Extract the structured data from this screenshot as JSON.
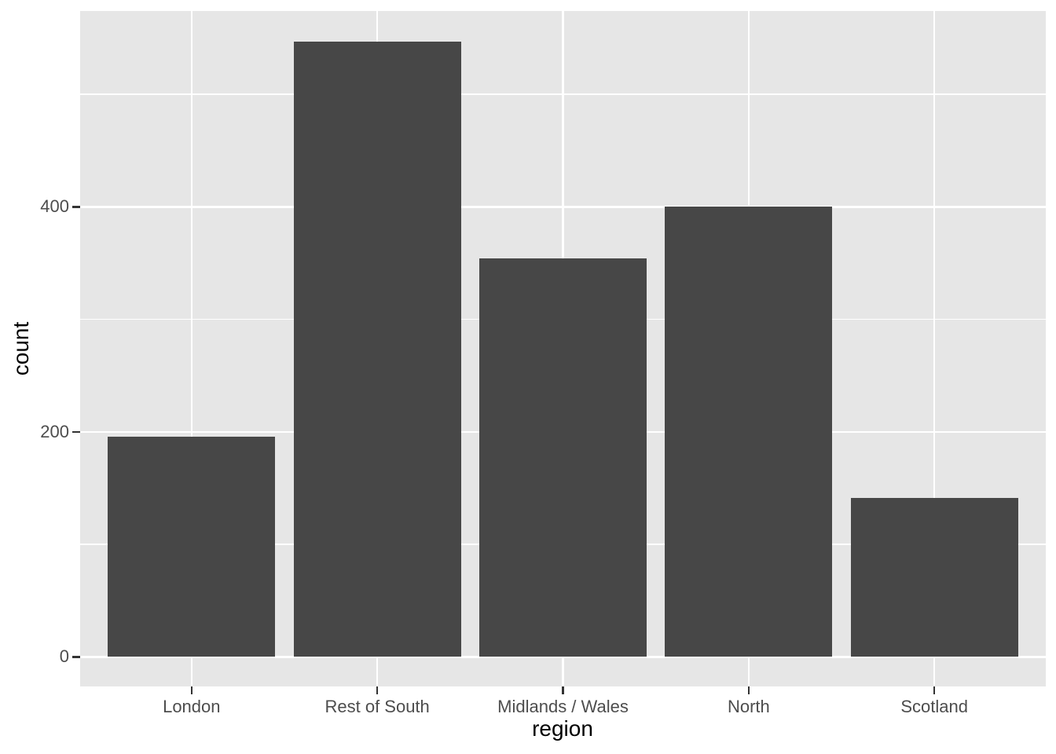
{
  "chart_data": {
    "type": "bar",
    "title": "",
    "xlabel": "region",
    "ylabel": "count",
    "categories": [
      "London",
      "Rest of South",
      "Midlands / Wales",
      "North",
      "Scotland"
    ],
    "values": [
      196,
      547,
      354,
      400,
      141
    ],
    "y_major_ticks": [
      0,
      200,
      400
    ],
    "y_minor_ticks": [
      100,
      300,
      500
    ],
    "ylim": [
      -26.3,
      574.1
    ],
    "x_expand": 0.6,
    "bar_width_fraction": 0.9,
    "grid": true,
    "legend_position": "none",
    "colors": {
      "bar_fill": "#474747",
      "panel_background": "#E6E6E6",
      "grid_major": "#FFFFFF",
      "grid_minor": "#FFFFFF",
      "tick_mark": "#333333",
      "tick_label": "#4D4D4D",
      "axis_title": "#000000",
      "figure_background": "#FFFFFF"
    }
  }
}
